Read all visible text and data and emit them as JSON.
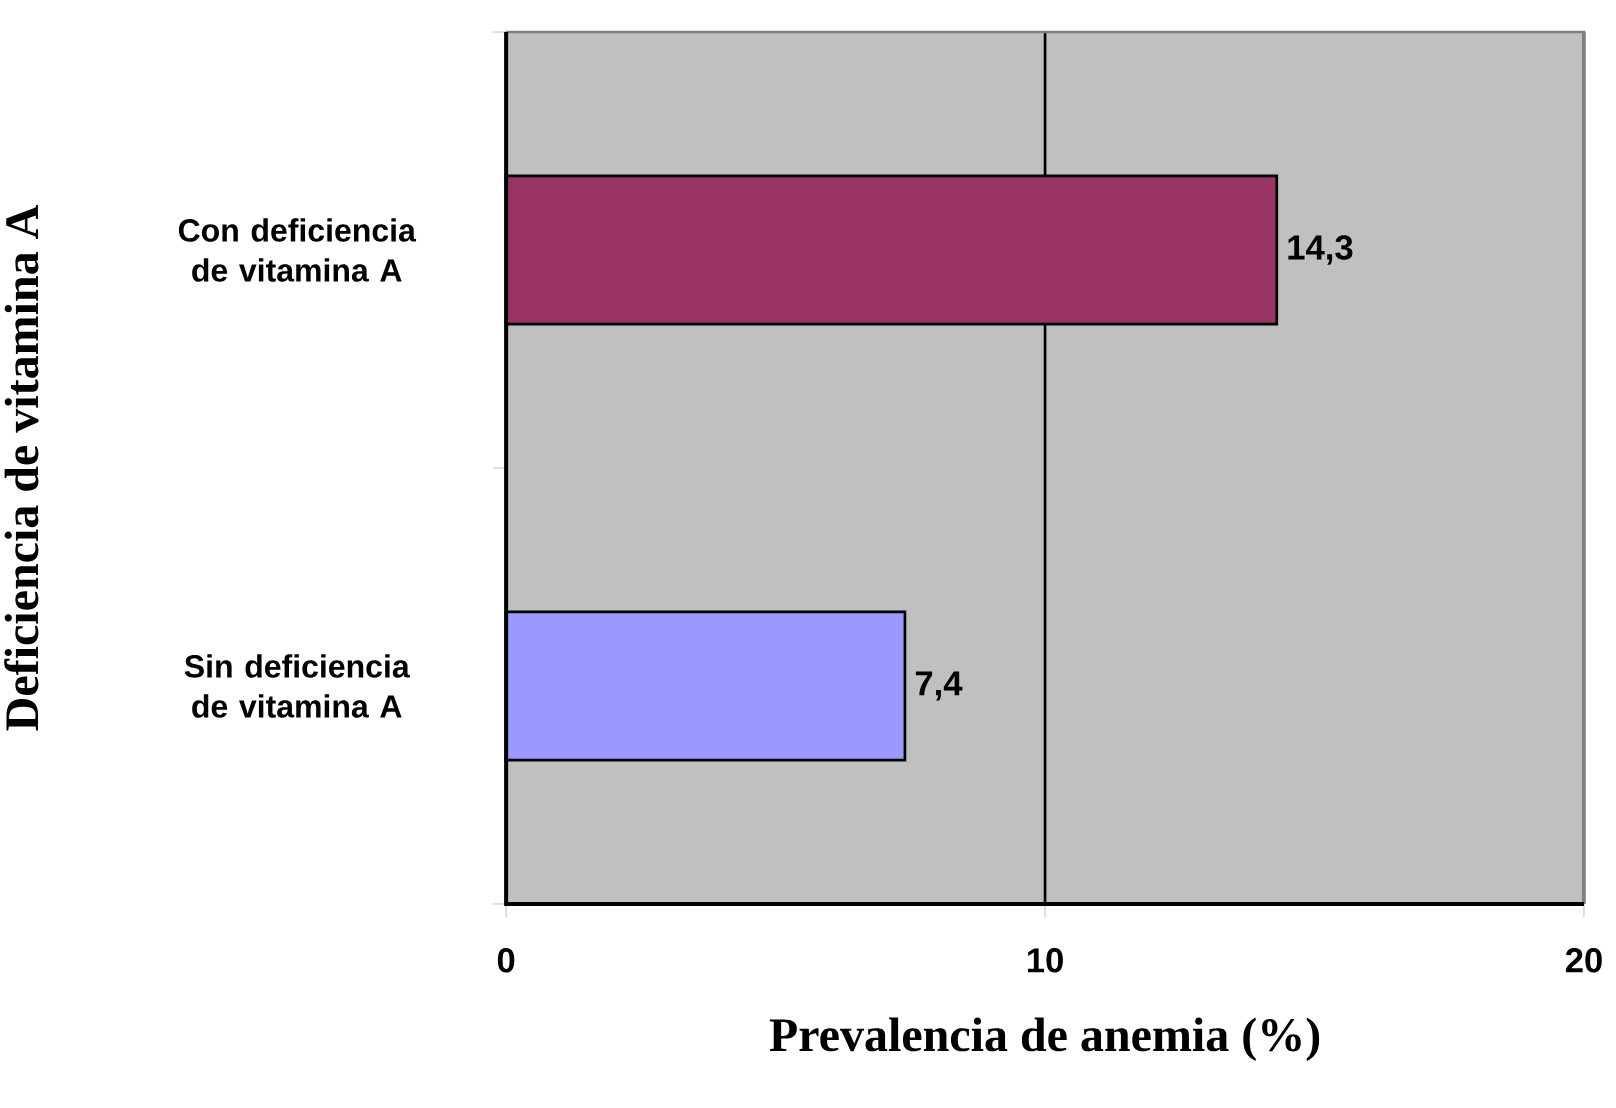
{
  "chart_data": {
    "type": "bar",
    "orientation": "horizontal",
    "categories": [
      "Con deficiencia de vitamina A",
      "Sin deficiencia de vitamina A"
    ],
    "values": [
      14.3,
      7.4
    ],
    "colors": [
      "#993366",
      "#9999ff"
    ],
    "value_labels": [
      "14,3",
      "7,4"
    ],
    "xlim": [
      0,
      20
    ],
    "xticks": [
      0,
      10,
      20
    ],
    "grid": "x",
    "xlabel": "Prevalencia de anemia (%)",
    "ylabel": "Deficiencia de vitamina A"
  }
}
